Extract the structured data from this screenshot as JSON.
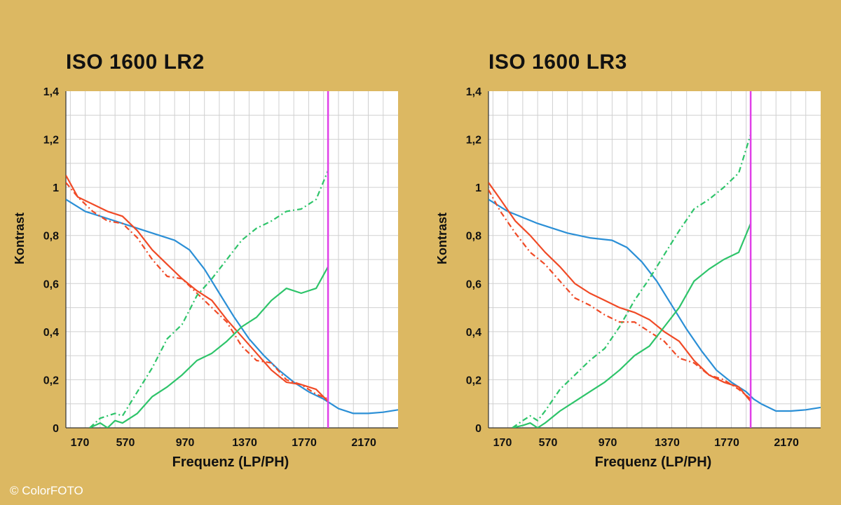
{
  "credit": "© ColorFOTO",
  "colors": {
    "background": "#dcb862",
    "plot_bg": "#ffffff",
    "grid": "#d0d0d0",
    "blue": "#2b8fd6",
    "red": "#f04a26",
    "green": "#2ec46a",
    "magenta": "#e040e8"
  },
  "chart_data": [
    {
      "type": "line",
      "title": "ISO 1600 LR2",
      "xlabel": "Frequenz (LP/PH)",
      "ylabel": "Kontrast",
      "xlim": [
        170,
        2400
      ],
      "ylim": [
        0,
        1.4
      ],
      "x_ticks": [
        170,
        570,
        970,
        1370,
        1770,
        2170
      ],
      "x_tick_labels": [
        "170",
        "570",
        "970",
        "1370",
        "1770",
        "2170"
      ],
      "y_ticks": [
        0,
        0.2,
        0.4,
        0.6,
        0.8,
        1,
        1.2,
        1.4
      ],
      "y_tick_labels": [
        "0",
        "0,2",
        "0,4",
        "0,6",
        "0,8",
        "1",
        "1,2",
        "1,4"
      ],
      "grid": true,
      "vline": 1930,
      "series": [
        {
          "color": "blue",
          "style": "solid",
          "x": [
            170,
            300,
            500,
            700,
            900,
            1000,
            1100,
            1200,
            1300,
            1400,
            1500,
            1600,
            1700,
            1800,
            1900,
            1950,
            2000,
            2100,
            2200,
            2300,
            2400
          ],
          "y": [
            0.95,
            0.9,
            0.86,
            0.82,
            0.78,
            0.74,
            0.66,
            0.56,
            0.46,
            0.37,
            0.3,
            0.24,
            0.19,
            0.15,
            0.12,
            0.1,
            0.08,
            0.06,
            0.06,
            0.065,
            0.075
          ]
        },
        {
          "color": "red",
          "style": "solid",
          "x": [
            170,
            250,
            350,
            450,
            550,
            650,
            750,
            850,
            950,
            1050,
            1150,
            1250,
            1350,
            1450,
            1550,
            1650,
            1750,
            1850,
            1930
          ],
          "y": [
            1.05,
            0.96,
            0.93,
            0.9,
            0.88,
            0.82,
            0.74,
            0.68,
            0.62,
            0.57,
            0.53,
            0.45,
            0.38,
            0.31,
            0.24,
            0.19,
            0.18,
            0.16,
            0.11
          ]
        },
        {
          "color": "red",
          "style": "dashdot",
          "x": [
            170,
            250,
            350,
            450,
            550,
            650,
            750,
            850,
            950,
            1050,
            1150,
            1250,
            1350,
            1450,
            1550,
            1650,
            1750,
            1850,
            1930
          ],
          "y": [
            1.02,
            0.96,
            0.9,
            0.86,
            0.85,
            0.79,
            0.7,
            0.63,
            0.62,
            0.56,
            0.5,
            0.44,
            0.34,
            0.28,
            0.27,
            0.2,
            0.18,
            0.14,
            0.12
          ]
        },
        {
          "color": "green",
          "style": "solid",
          "x": [
            330,
            400,
            450,
            500,
            550,
            650,
            750,
            850,
            950,
            1050,
            1150,
            1250,
            1350,
            1450,
            1550,
            1650,
            1750,
            1850,
            1930
          ],
          "y": [
            0,
            0.02,
            0.0,
            0.03,
            0.02,
            0.06,
            0.13,
            0.17,
            0.22,
            0.28,
            0.31,
            0.36,
            0.42,
            0.46,
            0.53,
            0.58,
            0.56,
            0.58,
            0.67
          ]
        },
        {
          "color": "green",
          "style": "dashdot",
          "x": [
            330,
            400,
            450,
            500,
            550,
            650,
            750,
            850,
            950,
            1050,
            1150,
            1250,
            1350,
            1450,
            1550,
            1650,
            1750,
            1850,
            1930
          ],
          "y": [
            0,
            0.04,
            0.05,
            0.06,
            0.05,
            0.15,
            0.25,
            0.37,
            0.43,
            0.55,
            0.62,
            0.7,
            0.78,
            0.83,
            0.86,
            0.9,
            0.91,
            0.95,
            1.07
          ]
        }
      ]
    },
    {
      "type": "line",
      "title": "ISO 1600 LR3",
      "xlabel": "Frequenz (LP/PH)",
      "ylabel": "Kontrast",
      "xlim": [
        170,
        2400
      ],
      "ylim": [
        0,
        1.4
      ],
      "x_ticks": [
        170,
        570,
        970,
        1370,
        1770,
        2170
      ],
      "x_tick_labels": [
        "170",
        "570",
        "970",
        "1370",
        "1770",
        "2170"
      ],
      "y_ticks": [
        0,
        0.2,
        0.4,
        0.6,
        0.8,
        1,
        1.2,
        1.4
      ],
      "y_tick_labels": [
        "0",
        "0,2",
        "0,4",
        "0,6",
        "0,8",
        "1",
        "1,2",
        "1,4"
      ],
      "grid": true,
      "vline": 1930,
      "series": [
        {
          "color": "blue",
          "style": "solid",
          "x": [
            170,
            300,
            500,
            700,
            850,
            1000,
            1100,
            1200,
            1300,
            1400,
            1500,
            1600,
            1700,
            1800,
            1900,
            1950,
            2000,
            2100,
            2200,
            2300,
            2400
          ],
          "y": [
            0.95,
            0.9,
            0.85,
            0.81,
            0.79,
            0.78,
            0.75,
            0.69,
            0.61,
            0.51,
            0.41,
            0.32,
            0.24,
            0.19,
            0.15,
            0.12,
            0.1,
            0.07,
            0.07,
            0.075,
            0.085
          ]
        },
        {
          "color": "red",
          "style": "solid",
          "x": [
            170,
            250,
            350,
            450,
            550,
            650,
            750,
            850,
            950,
            1050,
            1150,
            1250,
            1350,
            1450,
            1550,
            1650,
            1750,
            1850,
            1930
          ],
          "y": [
            1.02,
            0.95,
            0.86,
            0.8,
            0.73,
            0.67,
            0.6,
            0.56,
            0.53,
            0.5,
            0.48,
            0.45,
            0.4,
            0.36,
            0.28,
            0.22,
            0.19,
            0.17,
            0.11
          ]
        },
        {
          "color": "red",
          "style": "dashdot",
          "x": [
            170,
            250,
            350,
            450,
            550,
            650,
            750,
            850,
            950,
            1050,
            1150,
            1250,
            1350,
            1450,
            1550,
            1650,
            1750,
            1850,
            1930
          ],
          "y": [
            0.99,
            0.9,
            0.81,
            0.73,
            0.68,
            0.61,
            0.54,
            0.51,
            0.47,
            0.44,
            0.44,
            0.4,
            0.36,
            0.29,
            0.27,
            0.22,
            0.2,
            0.16,
            0.12
          ]
        },
        {
          "color": "green",
          "style": "solid",
          "x": [
            330,
            400,
            450,
            500,
            550,
            650,
            750,
            850,
            950,
            1050,
            1150,
            1250,
            1350,
            1450,
            1550,
            1650,
            1750,
            1850,
            1930
          ],
          "y": [
            0,
            0.01,
            0.02,
            0.0,
            0.02,
            0.07,
            0.11,
            0.15,
            0.19,
            0.24,
            0.3,
            0.34,
            0.42,
            0.5,
            0.61,
            0.66,
            0.7,
            0.73,
            0.85
          ]
        },
        {
          "color": "green",
          "style": "dashdot",
          "x": [
            330,
            400,
            450,
            500,
            550,
            650,
            750,
            850,
            950,
            1050,
            1150,
            1250,
            1350,
            1450,
            1550,
            1650,
            1750,
            1850,
            1930
          ],
          "y": [
            0,
            0.03,
            0.05,
            0.03,
            0.07,
            0.16,
            0.22,
            0.28,
            0.33,
            0.42,
            0.53,
            0.62,
            0.72,
            0.82,
            0.91,
            0.95,
            1.0,
            1.06,
            1.22
          ]
        }
      ]
    }
  ]
}
